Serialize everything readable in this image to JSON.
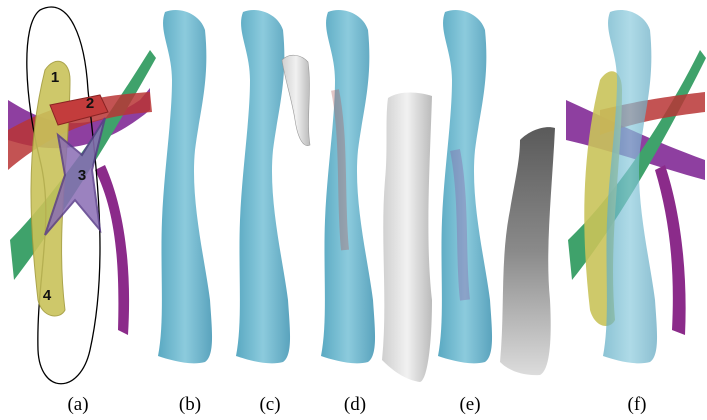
{
  "panel_labels": [
    "(a)",
    "(b)",
    "(c)",
    "(d)",
    "(e)",
    "(f)"
  ],
  "region_labels": [
    "1",
    "2",
    "3",
    "4"
  ]
}
